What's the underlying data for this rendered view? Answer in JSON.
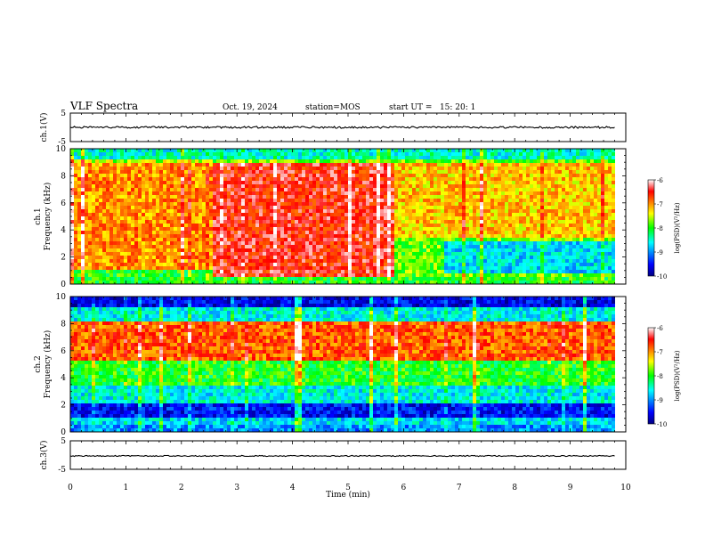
{
  "header": {
    "title": "VLF Spectra",
    "date": "Oct. 19, 2024",
    "station": "station=MOS",
    "start": "start UT =   15: 20: 1"
  },
  "chart_data": [
    {
      "type": "line",
      "panel": "ch1-waveform",
      "ylabel": "ch.1(V)",
      "ylim": [
        -5,
        5
      ],
      "yticks": [
        "5",
        "-5"
      ],
      "series": [
        {
          "values_description_free": true,
          "mean": 0
        }
      ]
    },
    {
      "type": "heatmap",
      "panel": "ch1-spectrogram",
      "ylabel": "ch.1\nFrequency (kHz)",
      "ylabel_line1": "ch.1",
      "ylabel_line2": "Frequency (kHz)",
      "ylim": [
        0,
        10
      ],
      "yticks": [
        "0",
        "2",
        "4",
        "6",
        "8",
        "10"
      ],
      "colorbar": {
        "label": "log(PSD)(V²/Hz)",
        "range": [
          -10,
          -6
        ],
        "ticks": [
          "-6",
          "-7",
          "-8",
          "-9",
          "-10"
        ]
      },
      "bands": [
        {
          "t0": 0.0,
          "t1": 2.5,
          "f0": 1.0,
          "f1": 9.0,
          "level": -7.0
        },
        {
          "t0": 2.5,
          "t1": 5.7,
          "f0": 0.5,
          "f1": 9.0,
          "level": -6.5
        },
        {
          "t0": 5.7,
          "t1": 9.8,
          "f0": 3.5,
          "f1": 9.0,
          "level": -7.2
        },
        {
          "t0": 6.6,
          "t1": 9.8,
          "f0": 0.8,
          "f1": 3.2,
          "level": -8.7
        }
      ]
    },
    {
      "type": "heatmap",
      "panel": "ch2-spectrogram",
      "ylabel_line1": "ch.2",
      "ylabel_line2": "Frequency (kHz)",
      "ylim": [
        0,
        10
      ],
      "yticks": [
        "0",
        "2",
        "4",
        "6",
        "8",
        "10"
      ],
      "colorbar": {
        "label": "log(PSD)(V²/Hz)",
        "range": [
          -10,
          -6
        ],
        "ticks": [
          "-6",
          "-7",
          "-8",
          "-9",
          "-10"
        ]
      },
      "bands": [
        {
          "t0": 0.0,
          "t1": 9.8,
          "f0": 5.2,
          "f1": 8.2,
          "level": -6.8
        },
        {
          "t0": 0.0,
          "t1": 9.8,
          "f0": 1.0,
          "f1": 2.0,
          "level": -9.5
        }
      ]
    },
    {
      "type": "line",
      "panel": "ch3-waveform",
      "ylabel": "ch.3(V)",
      "ylim": [
        -5,
        5
      ],
      "yticks": [
        "5",
        "-5"
      ]
    },
    {
      "type": "axis",
      "xlabel": "Time (min)",
      "xlim": [
        0,
        10
      ],
      "xticks": [
        "0",
        "1",
        "2",
        "3",
        "4",
        "5",
        "6",
        "7",
        "8",
        "9",
        "10"
      ]
    }
  ]
}
